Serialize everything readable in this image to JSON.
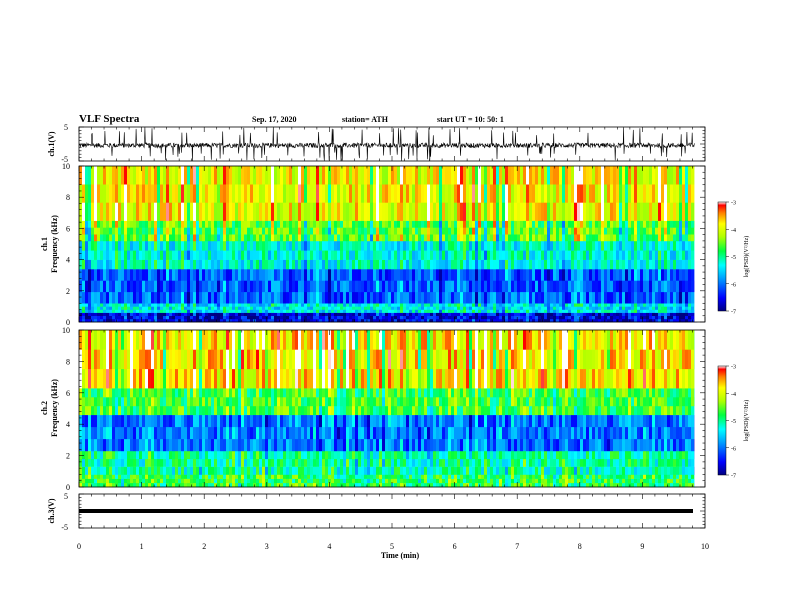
{
  "header": {
    "title": "VLF Spectra",
    "date": "Sep. 17, 2020",
    "station": "station= ATH",
    "start": "start  UT  =   10: 50: 1"
  },
  "chart_data": [
    {
      "type": "line",
      "id": "ch1-waveform",
      "ylabel": "ch.1(V)",
      "ylim": [
        -5,
        5
      ],
      "yticks": [
        -5,
        5
      ],
      "xlim": [
        0,
        10
      ],
      "series": [
        {
          "description_values": "noisy waveform, baseline about -0.3 V, spikes reaching about +/-5 V"
        }
      ]
    },
    {
      "type": "heatmap",
      "id": "ch1-spectrogram",
      "ylabel": "ch.1\nFrequency  (kHz)",
      "ylim": [
        0,
        10
      ],
      "yticks": [
        0,
        2,
        4,
        6,
        8,
        10
      ],
      "xlim": [
        0,
        10
      ],
      "t_end": 9.83,
      "colorbar": {
        "label": "log(PSD)(V²/Hz)",
        "range": [
          -7,
          -3
        ],
        "ticks": [
          -7,
          -6,
          -5,
          -4,
          -3
        ]
      },
      "bands": [
        {
          "f": [
            0,
            0.6
          ],
          "level": -6.6
        },
        {
          "f": [
            0.6,
            1.2
          ],
          "level": -5.4
        },
        {
          "f": [
            1.2,
            3.4
          ],
          "level": -6.1
        },
        {
          "f": [
            3.4,
            5.2
          ],
          "level": -5.3
        },
        {
          "f": [
            5.2,
            6.5
          ],
          "level": -4.6
        },
        {
          "f": [
            6.5,
            10
          ],
          "level": -3.9
        }
      ]
    },
    {
      "type": "heatmap",
      "id": "ch2-spectrogram",
      "ylabel": "ch.2\nFrequency  (kHz)",
      "ylim": [
        0,
        10
      ],
      "yticks": [
        0,
        2,
        4,
        6,
        8,
        10
      ],
      "xlim": [
        0,
        10
      ],
      "t_end": 9.83,
      "colorbar": {
        "label": "log(PSD)(V²/Hz)",
        "range": [
          -7,
          -3
        ],
        "ticks": [
          -7,
          -6,
          -5,
          -4,
          -3
        ]
      },
      "bands": [
        {
          "f": [
            0,
            0.8
          ],
          "level": -4.8
        },
        {
          "f": [
            0.8,
            2.3
          ],
          "level": -5.1
        },
        {
          "f": [
            2.3,
            4.6
          ],
          "level": -6.0
        },
        {
          "f": [
            4.6,
            6.3
          ],
          "level": -4.7
        },
        {
          "f": [
            6.3,
            10
          ],
          "level": -3.8
        }
      ]
    },
    {
      "type": "line",
      "id": "ch3-waveform",
      "ylabel": "ch.3(V)",
      "ylim": [
        -5,
        5
      ],
      "yticks": [
        -5,
        5
      ],
      "xlim": [
        0,
        10
      ],
      "series": [
        {
          "description_values": "flat thick trace at about 0 V"
        }
      ]
    }
  ],
  "xaxis": {
    "label": "Time  (min)",
    "ticks": [
      "0",
      "1",
      "2",
      "3",
      "4",
      "5",
      "6",
      "7",
      "8",
      "9",
      "10"
    ]
  }
}
